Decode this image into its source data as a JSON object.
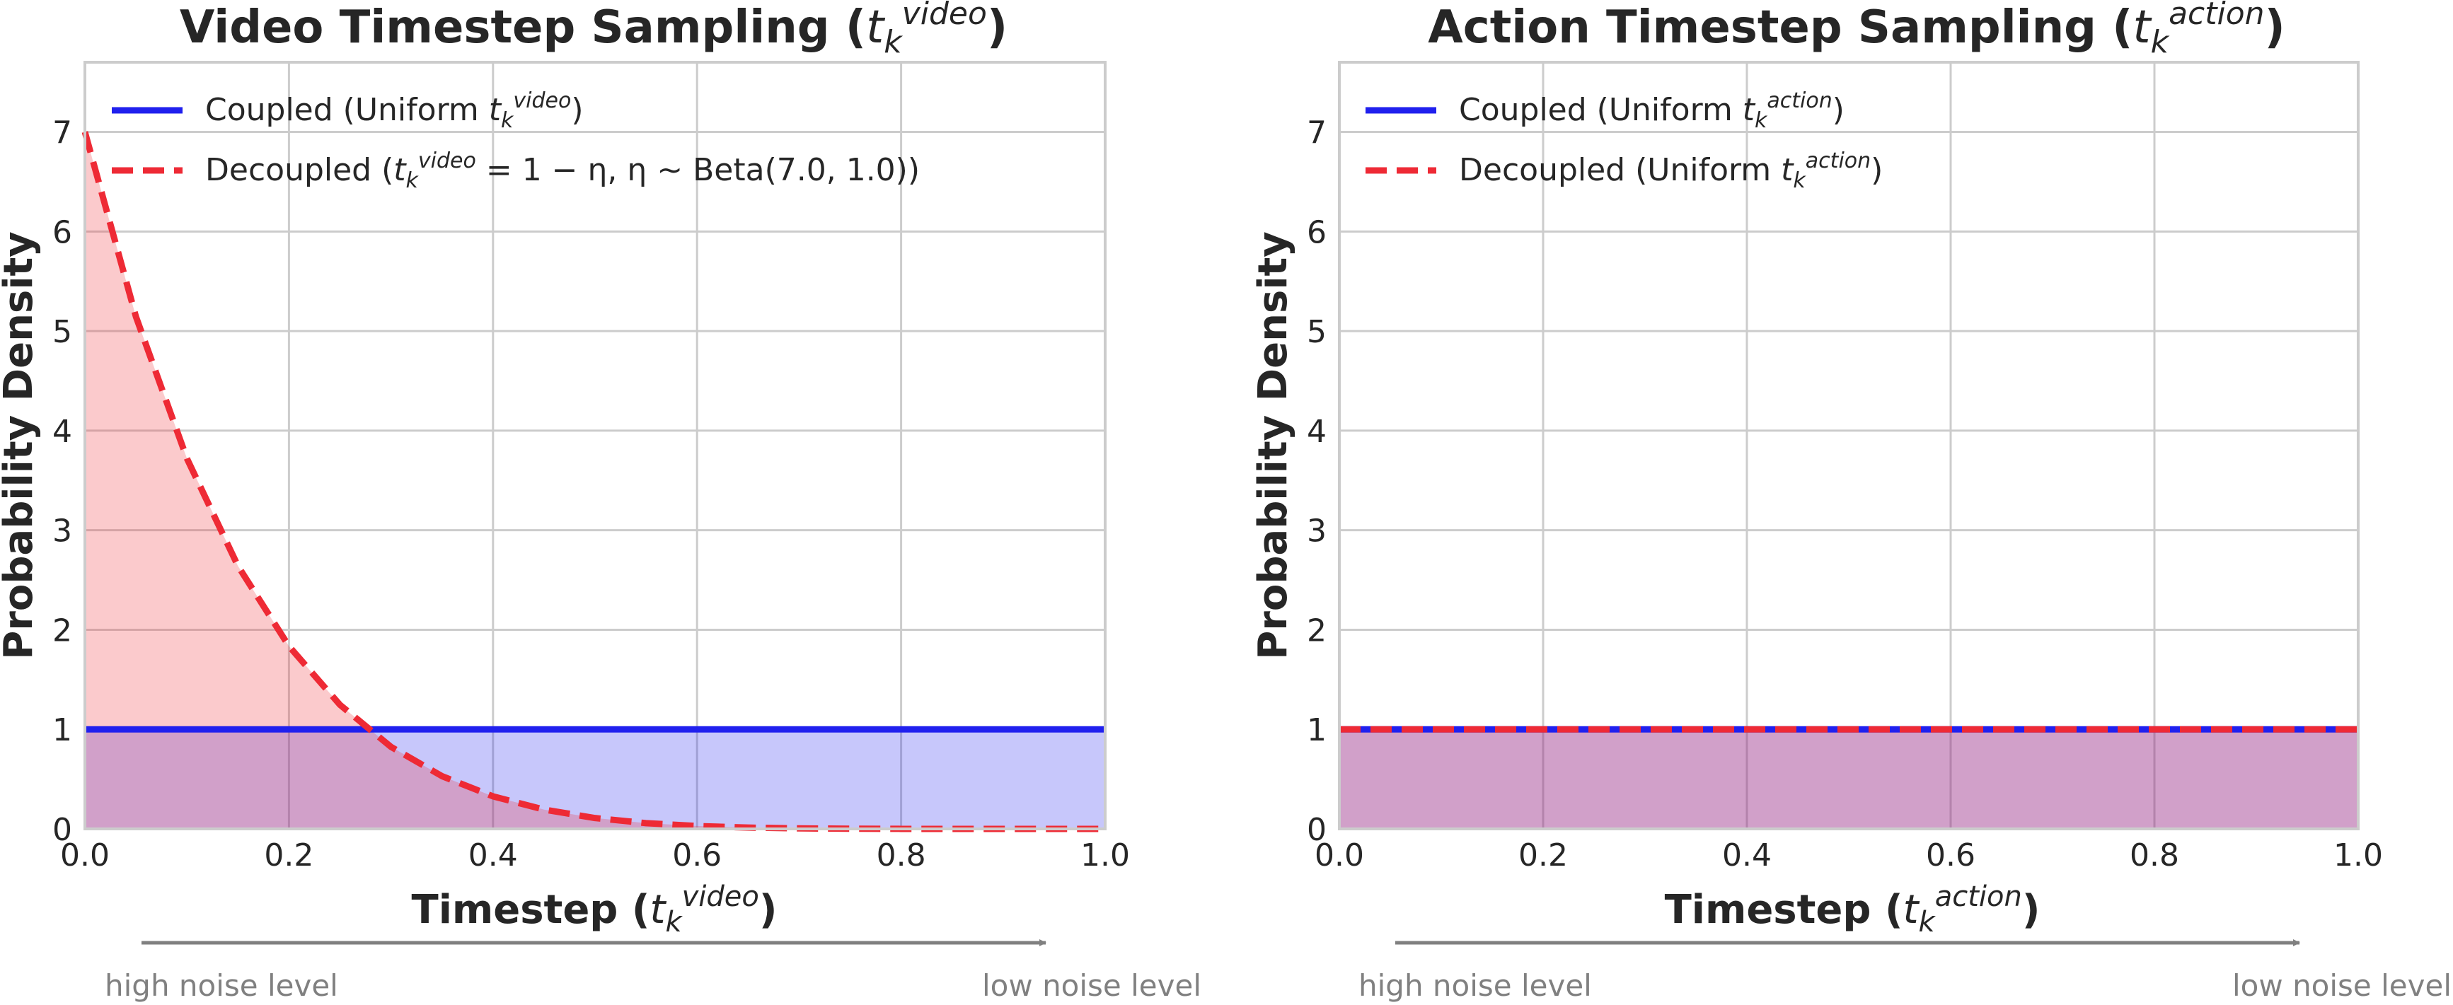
{
  "chart_data": [
    {
      "type": "area",
      "title": "Video Timestep Sampling (t_k^video)",
      "title_parts": [
        "Video Timestep Sampling (",
        "t",
        "k",
        "video",
        ")"
      ],
      "xlabel": "Timestep (t_k^video)",
      "xlabel_parts": [
        "Timestep (",
        "t",
        "k",
        "video",
        ")"
      ],
      "ylabel": "Probability Density",
      "xlim": [
        0.0,
        1.0
      ],
      "ylim": [
        0,
        7.7
      ],
      "x_ticks": [
        "0.0",
        "0.2",
        "0.4",
        "0.6",
        "0.8",
        "1.0"
      ],
      "y_ticks": [
        "0",
        "1",
        "2",
        "3",
        "4",
        "5",
        "6",
        "7"
      ],
      "grid": true,
      "legend_position": "top-left",
      "annotation_left": "high noise level",
      "annotation_right": "low noise level",
      "series": [
        {
          "name": "Coupled (Uniform t_k^video)",
          "legend_parts": [
            "Coupled (Uniform ",
            "t",
            "k",
            "video",
            ")"
          ],
          "color": "#2020ee",
          "style": "solid",
          "fill": "#c8c8fa",
          "x": [
            0.0,
            1.0
          ],
          "y": [
            1.0,
            1.0
          ]
        },
        {
          "name": "Decoupled (t_k^video = 1 − η, η ~ Beta(7.0, 1.0))",
          "legend_parts": [
            "Decoupled (",
            "t",
            "k",
            "video",
            " = 1 − η,  η ~ Beta(7.0, 1.0))"
          ],
          "color": "#ee2a35",
          "style": "dashed",
          "fill": "#fac8c8",
          "x": [
            0.0,
            0.05,
            0.1,
            0.15,
            0.2,
            0.25,
            0.3,
            0.35,
            0.4,
            0.45,
            0.5,
            0.55,
            0.6,
            0.65,
            0.7,
            0.75,
            0.8,
            0.85,
            0.9,
            0.95,
            1.0
          ],
          "y": [
            7.0,
            5.145,
            3.72,
            2.641,
            1.835,
            1.246,
            0.824,
            0.53,
            0.327,
            0.194,
            0.109,
            0.058,
            0.029,
            0.013,
            0.005,
            0.002,
            0.0004,
            0.0001,
            0.0,
            0.0,
            0.0
          ]
        }
      ]
    },
    {
      "type": "area",
      "title": "Action Timestep Sampling (t_k^action)",
      "title_parts": [
        "Action Timestep Sampling (",
        "t",
        "k",
        "action",
        ")"
      ],
      "xlabel": "Timestep (t_k^action)",
      "xlabel_parts": [
        "Timestep (",
        "t",
        "k",
        "action",
        ")"
      ],
      "ylabel": "Probability Density",
      "xlim": [
        0.0,
        1.0
      ],
      "ylim": [
        0,
        7.7
      ],
      "x_ticks": [
        "0.0",
        "0.2",
        "0.4",
        "0.6",
        "0.8",
        "1.0"
      ],
      "y_ticks": [
        "0",
        "1",
        "2",
        "3",
        "4",
        "5",
        "6",
        "7"
      ],
      "grid": true,
      "legend_position": "top-left",
      "annotation_left": "high noise level",
      "annotation_right": "low noise level",
      "series": [
        {
          "name": "Coupled (Uniform t_k^action)",
          "legend_parts": [
            "Coupled (Uniform ",
            "t",
            "k",
            "action",
            ")"
          ],
          "color": "#2020ee",
          "style": "solid",
          "fill": "#c8c8fa",
          "x": [
            0.0,
            1.0
          ],
          "y": [
            1.0,
            1.0
          ]
        },
        {
          "name": "Decoupled (Uniform t_k^action)",
          "legend_parts": [
            "Decoupled (Uniform ",
            "t",
            "k",
            "action",
            ")"
          ],
          "color": "#ee2a35",
          "style": "dashed",
          "fill": "#fac8c8",
          "x": [
            0.0,
            1.0
          ],
          "y": [
            1.0,
            1.0
          ]
        }
      ]
    }
  ]
}
